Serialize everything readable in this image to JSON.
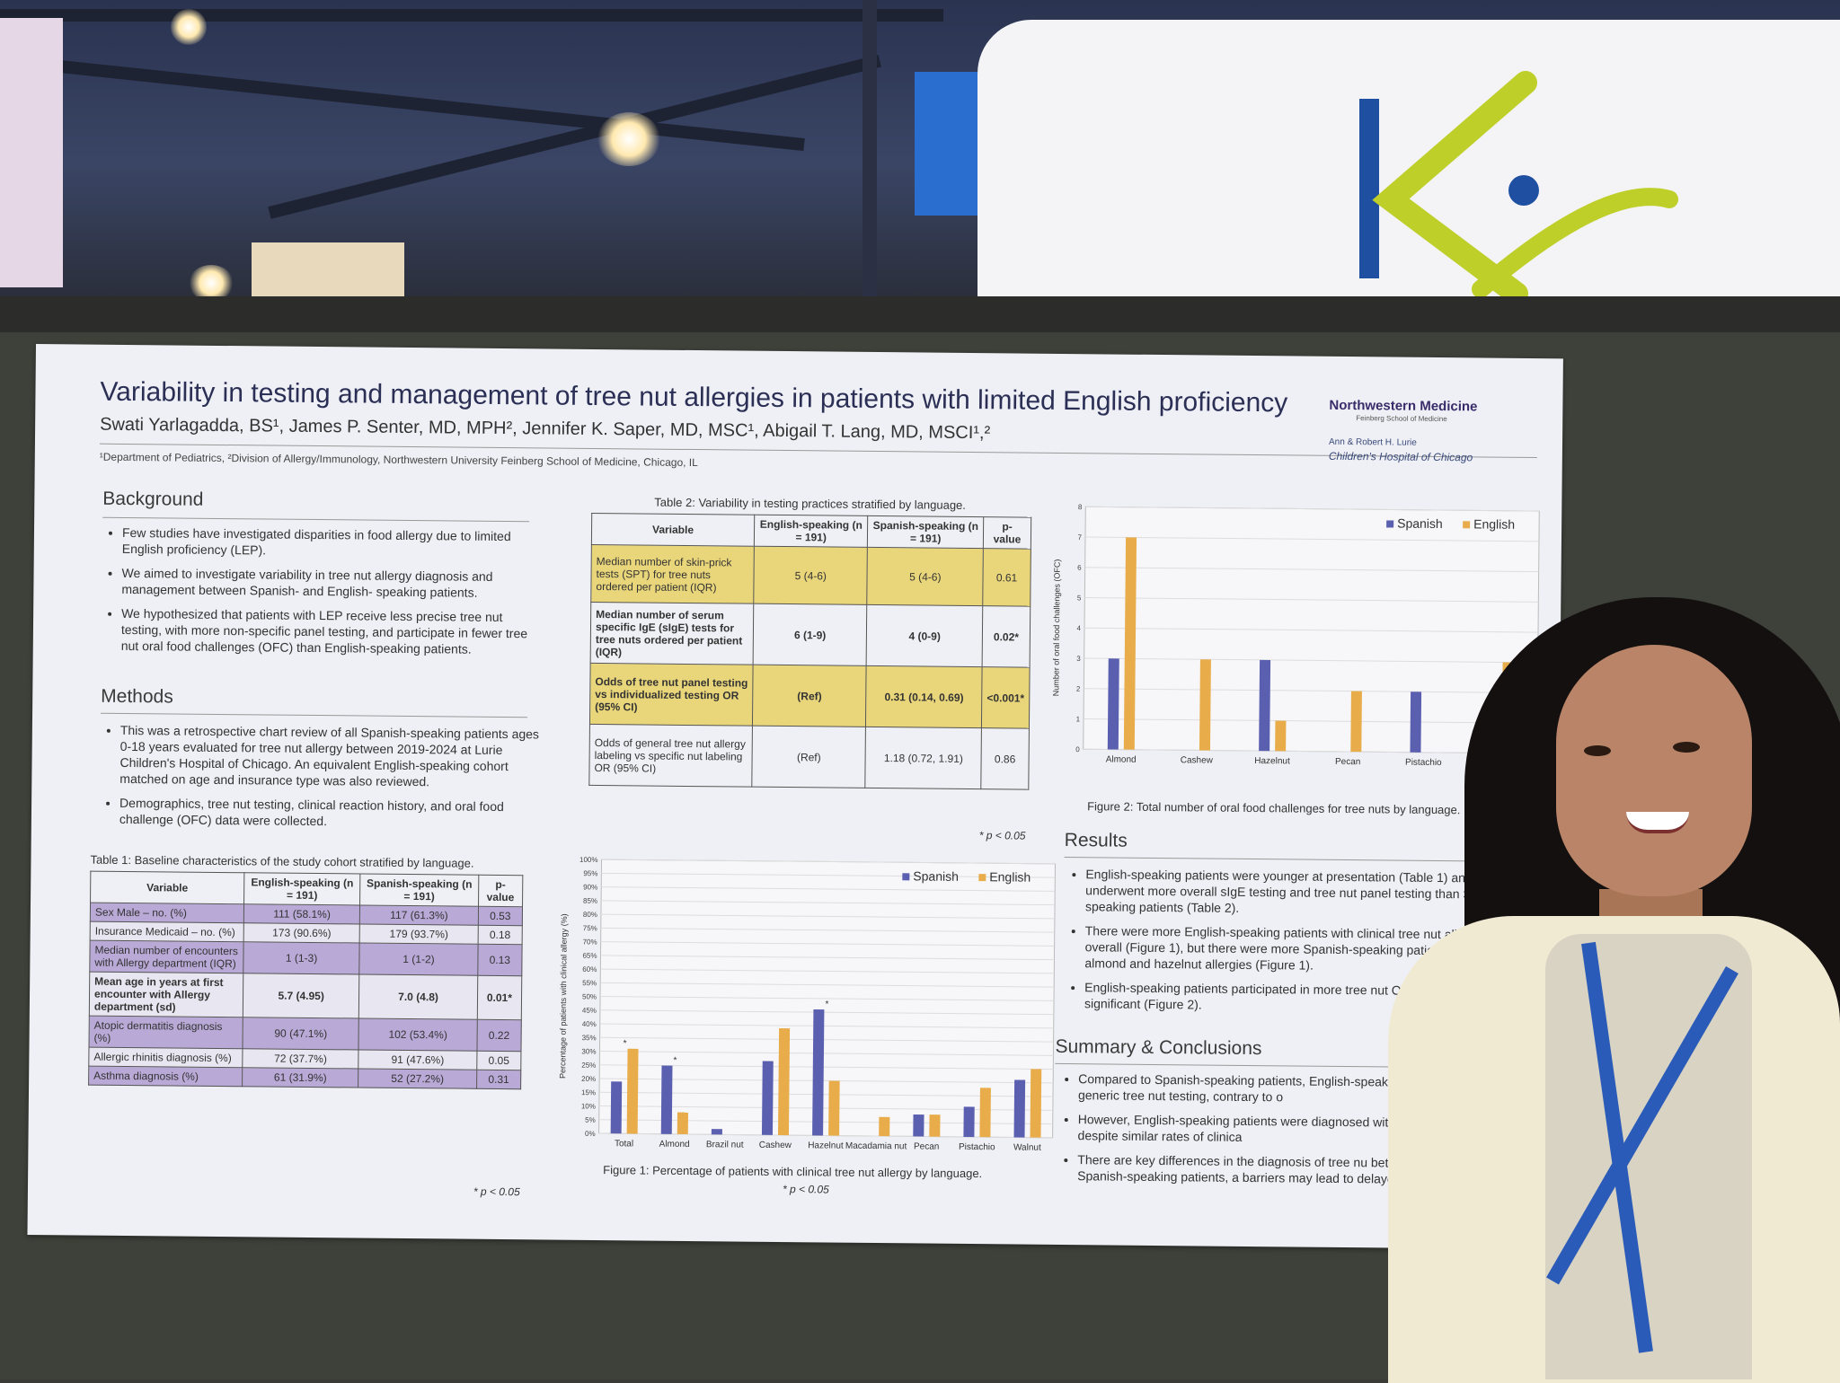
{
  "poster": {
    "title": "Variability in testing and management of tree nut allergies in patients with limited English proficiency",
    "authors": "Swati Yarlagadda, BS¹, James P. Senter, MD, MPH², Jennifer K. Saper, MD, MSC¹, Abigail T. Lang, MD, MSCI¹,²",
    "affiliations": "¹Department of Pediatrics, ²Division of Allergy/Immunology, Northwestern University Feinberg School of Medicine, Chicago, IL",
    "logo_nm": "Northwestern Medicine",
    "logo_nm_sub": "Feinberg School of Medicine",
    "logo_lurie_1": "Ann & Robert H. Lurie",
    "logo_lurie_2": "Children's Hospital of Chicago",
    "background_heading": "Background",
    "background": [
      "Few studies have investigated disparities in food allergy due to limited English proficiency (LEP).",
      "We aimed to investigate variability in tree nut allergy diagnosis and management between Spanish- and English- speaking patients.",
      "We hypothesized that patients with LEP receive less precise tree nut testing, with more non-specific panel testing, and participate in fewer tree nut oral food challenges (OFC) than English-speaking patients."
    ],
    "methods_heading": "Methods",
    "methods": [
      "This was a retrospective chart review of all Spanish-speaking patients ages 0-18 years evaluated for tree nut allergy between 2019-2024 at Lurie Children's Hospital of Chicago. An equivalent English-speaking cohort matched on age and insurance type was also reviewed.",
      "Demographics, tree nut testing, clinical reaction history, and oral food challenge (OFC) data were collected."
    ],
    "table1": {
      "caption": "Table 1: Baseline characteristics of the study cohort stratified by language.",
      "headers": [
        "Variable",
        "English-speaking (n = 191)",
        "Spanish-speaking (n = 191)",
        "p-value"
      ],
      "rows": [
        [
          "Sex Male – no. (%)",
          "111 (58.1%)",
          "117 (61.3%)",
          "0.53"
        ],
        [
          "Insurance Medicaid – no. (%)",
          "173 (90.6%)",
          "179 (93.7%)",
          "0.18"
        ],
        [
          "Median number of encounters with Allergy department (IQR)",
          "1 (1-3)",
          "1 (1-2)",
          "0.13"
        ],
        [
          "Mean age in years at first encounter with Allergy department (sd)",
          "5.7 (4.95)",
          "7.0 (4.8)",
          "0.01*"
        ],
        [
          "Atopic dermatitis diagnosis (%)",
          "90 (47.1%)",
          "102 (53.4%)",
          "0.22"
        ],
        [
          "Allergic rhinitis diagnosis (%)",
          "72 (37.7%)",
          "91 (47.6%)",
          "0.05"
        ],
        [
          "Asthma diagnosis (%)",
          "61 (31.9%)",
          "52 (27.2%)",
          "0.31"
        ]
      ],
      "note": "* p < 0.05"
    },
    "table2": {
      "caption": "Table 2: Variability in testing practices stratified by language.",
      "headers": [
        "Variable",
        "English-speaking (n = 191)",
        "Spanish-speaking (n = 191)",
        "p-value"
      ],
      "rows": [
        [
          "Median number of skin-prick tests (SPT) for tree nuts ordered per patient (IQR)",
          "5 (4-6)",
          "5 (4-6)",
          "0.61"
        ],
        [
          "Median number of serum specific IgE (sIgE) tests for tree nuts ordered per patient (IQR)",
          "6 (1-9)",
          "4 (0-9)",
          "0.02*"
        ],
        [
          "Odds of tree nut panel testing vs individualized testing OR (95% CI)",
          "(Ref)",
          "0.31 (0.14, 0.69)",
          "<0.001*"
        ],
        [
          "Odds of general tree nut allergy labeling vs specific nut labeling OR (95% CI)",
          "(Ref)",
          "1.18 (0.72, 1.91)",
          "0.86"
        ]
      ],
      "note": "* p < 0.05"
    },
    "results_heading": "Results",
    "results": [
      "English-speaking patients were younger at presentation (Table 1) and underwent more overall sIgE testing and tree nut panel testing than Spanish-speaking patients (Table 2).",
      "There were more English-speaking patients with clinical tree nut allergies overall (Figure 1), but there were more Spanish-speaking patients with almond and hazelnut allergies (Figure 1).",
      "English-speaking patients participated in more tree nut OFCs, this was not significant (Figure 2)."
    ],
    "summary_heading": "Summary & Conclusions",
    "summary": [
      "Compared to Spanish-speaking patients, English-speaking received more generic tree nut testing, contrary to o",
      "However, English-speaking patients were diagnosed with tree nut allergies despite similar rates of clinica",
      "There are key differences in the diagnosis of tree nu between English- and Spanish-speaking patients, a barriers may lead to delayed diagnoses."
    ]
  },
  "colors": {
    "spanish": "#5a5fb0",
    "english": "#e8ad4a",
    "title": "#2b2f55",
    "table1_shade": "#b9a9d6",
    "table2_shade": "#ead67a"
  },
  "chart_data": [
    {
      "type": "bar",
      "caption": "Figure 1: Percentage of patients with clinical tree nut allergy by language.",
      "note": "* p < 0.05",
      "ylabel": "Percentage of patients with clinical allergy (%)",
      "ylim": [
        0,
        100
      ],
      "yticks": [
        "0%",
        "5%",
        "10%",
        "15%",
        "20%",
        "25%",
        "30%",
        "35%",
        "40%",
        "45%",
        "50%",
        "55%",
        "60%",
        "65%",
        "70%",
        "75%",
        "80%",
        "85%",
        "90%",
        "95%",
        "100%"
      ],
      "categories": [
        "Total",
        "Almond",
        "Brazil nut",
        "Cashew",
        "Hazelnut",
        "Macadamia nut",
        "Pecan",
        "Pistachio",
        "Walnut"
      ],
      "series": [
        {
          "name": "Spanish",
          "values": [
            19,
            25,
            2,
            27,
            46,
            0,
            8,
            11,
            21
          ]
        },
        {
          "name": "English",
          "values": [
            31,
            8,
            0,
            39,
            20,
            7,
            8,
            18,
            25
          ]
        }
      ],
      "significant": [
        "Total",
        "Almond",
        "Hazelnut"
      ],
      "legend": "top-right",
      "grid": true
    },
    {
      "type": "bar",
      "caption": "Figure 2: Total number of oral food challenges for tree nuts by language.",
      "ylabel": "Number of oral food challenges (OFC)",
      "ylim": [
        0,
        8
      ],
      "yticks": [
        "0",
        "1",
        "2",
        "3",
        "4",
        "5",
        "6",
        "7",
        "8"
      ],
      "categories": [
        "Almond",
        "Cashew",
        "Hazelnut",
        "Pecan",
        "Pistachio",
        "Walnut"
      ],
      "series": [
        {
          "name": "Spanish",
          "values": [
            3,
            0,
            3,
            0,
            2,
            0
          ]
        },
        {
          "name": "English",
          "values": [
            7,
            3,
            1,
            2,
            0,
            3
          ]
        }
      ],
      "legend": "top-right",
      "grid": true
    }
  ]
}
